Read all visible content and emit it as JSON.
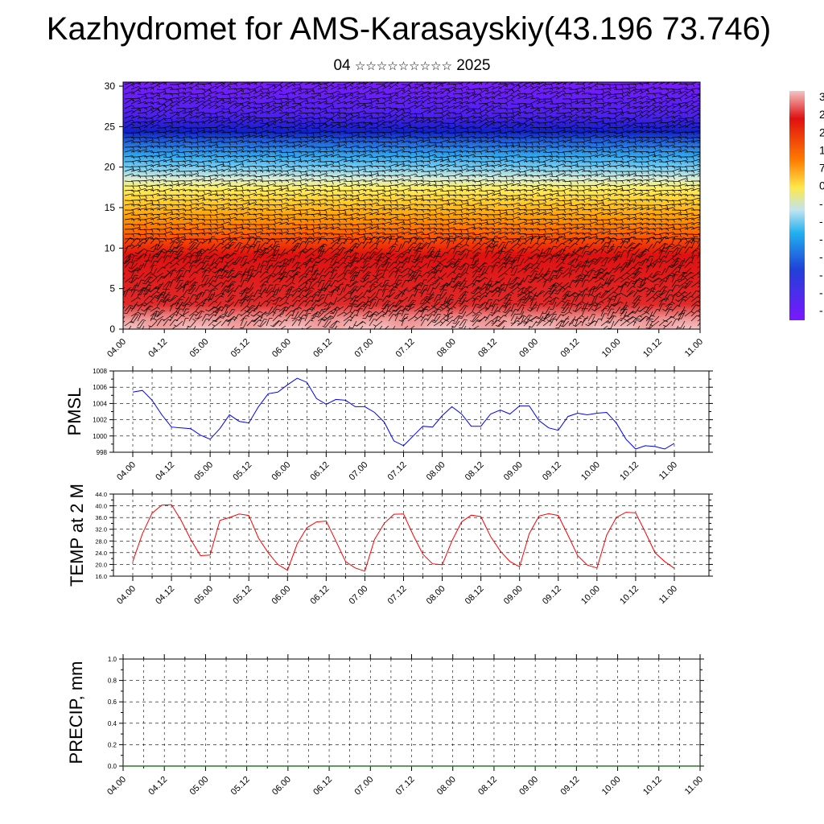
{
  "title": "Kazhydromet for AMS-Karasayskiy(43.196 73.746)",
  "subtitle": {
    "day": "04",
    "month_glyphs": "☆☆☆☆☆☆☆☆☆",
    "year": "2025"
  },
  "colorbar": {
    "labels": [
      "3",
      "2",
      "2",
      "1",
      "7",
      "0",
      "-",
      "-",
      "-",
      "-",
      "-",
      "-",
      "-"
    ],
    "colors": [
      "#f2c2c2",
      "#e01818",
      "#ff7a00",
      "#ffe84a",
      "#b0e0f0",
      "#20b0f0",
      "#2040d8",
      "#7a18ff"
    ]
  },
  "time_ticks": [
    "04.00",
    "04.12",
    "05.00",
    "05.12",
    "06.00",
    "06.12",
    "07.00",
    "07.12",
    "08.00",
    "08.12",
    "09.00",
    "09.12",
    "10.00",
    "10.12",
    "11.00"
  ],
  "chart_data": [
    {
      "type": "heatmap",
      "description_fields": "height-time section of temperature with wind barbs",
      "x_ticks": [
        "04.00",
        "04.12",
        "05.00",
        "05.12",
        "06.00",
        "06.12",
        "07.00",
        "07.12",
        "08.00",
        "08.12",
        "09.00",
        "09.12",
        "10.00",
        "10.12",
        "11.00"
      ],
      "y_ticks": [
        0,
        5,
        10,
        15,
        20,
        25,
        30
      ],
      "ylim": [
        0,
        30.5
      ],
      "x_range_days": [
        0,
        7
      ]
    },
    {
      "type": "line",
      "ylabel": "PMSL",
      "ylim": [
        998,
        1008
      ],
      "y_ticks": [
        "998",
        "1000",
        "1002",
        "1004",
        "1006",
        "1008"
      ],
      "x_ticks": [
        "04.00",
        "04.12",
        "05.00",
        "05.12",
        "06.00",
        "06.12",
        "07.00",
        "07.12",
        "08.00",
        "08.12",
        "09.00",
        "09.12",
        "10.00",
        "10.12",
        "11.00"
      ],
      "color": "#0000ff",
      "x_step_hours": 3,
      "values": [
        1005.4,
        1005.6,
        1004.4,
        1002.6,
        1001.1,
        1001.0,
        1000.9,
        1000.1,
        999.6,
        1000.9,
        1002.6,
        1001.8,
        1001.6,
        1003.6,
        1005.2,
        1005.4,
        1006.3,
        1007.1,
        1006.6,
        1004.6,
        1003.9,
        1004.5,
        1004.4,
        1003.6,
        1003.6,
        1002.9,
        1001.7,
        999.4,
        998.8,
        1000.0,
        1001.2,
        1001.1,
        1002.5,
        1003.6,
        1002.7,
        1001.2,
        1001.2,
        1002.7,
        1003.2,
        1002.7,
        1003.7,
        1003.7,
        1001.9,
        1001.0,
        1000.7,
        1002.4,
        1002.8,
        1002.6,
        1002.8,
        1002.9,
        1001.6,
        999.6,
        998.4,
        998.8,
        998.7,
        998.4,
        999.1
      ]
    },
    {
      "type": "line",
      "ylabel": "TEMP at 2 M",
      "ylim": [
        16,
        44
      ],
      "y_ticks": [
        "16.0",
        "20.0",
        "24.0",
        "28.0",
        "32.0",
        "36.0",
        "40.0",
        "44.0"
      ],
      "y_minor_ticks": [
        "18.0",
        "22.0",
        "26.0",
        "30.0",
        "34.0",
        "38.0"
      ],
      "x_ticks": [
        "04.00",
        "04.12",
        "05.00",
        "05.12",
        "06.00",
        "06.12",
        "07.00",
        "07.12",
        "08.00",
        "08.12",
        "09.00",
        "09.12",
        "10.00",
        "10.12",
        "11.00"
      ],
      "color": "#ff0000",
      "x_step_hours": 3,
      "values": [
        21.0,
        30.5,
        37.5,
        40.2,
        40.4,
        35.0,
        28.5,
        23.0,
        23.2,
        35.0,
        36.0,
        37.2,
        36.7,
        29.0,
        24.0,
        20.0,
        18.0,
        27.0,
        32.5,
        34.5,
        34.8,
        28.0,
        21.0,
        18.8,
        17.7,
        28.5,
        34.0,
        37.1,
        37.2,
        30.0,
        23.5,
        20.2,
        19.9,
        28.0,
        34.5,
        36.8,
        36.3,
        29.5,
        24.6,
        21.0,
        19.2,
        30.5,
        36.5,
        37.3,
        36.7,
        30.0,
        23.0,
        19.8,
        18.8,
        30.0,
        36.0,
        37.8,
        37.6,
        31.0,
        24.0,
        21.0,
        18.7
      ]
    },
    {
      "type": "bar",
      "ylabel": "PRECIP, mm",
      "ylim": [
        0,
        1
      ],
      "y_ticks": [
        "0.0",
        "0.2",
        "0.4",
        "0.6",
        "0.8",
        "1.0"
      ],
      "x_ticks": [
        "04.00",
        "04.12",
        "05.00",
        "05.12",
        "06.00",
        "06.12",
        "07.00",
        "07.12",
        "08.00",
        "08.12",
        "09.00",
        "09.12",
        "10.00",
        "10.12",
        "11.00"
      ],
      "values": []
    }
  ]
}
